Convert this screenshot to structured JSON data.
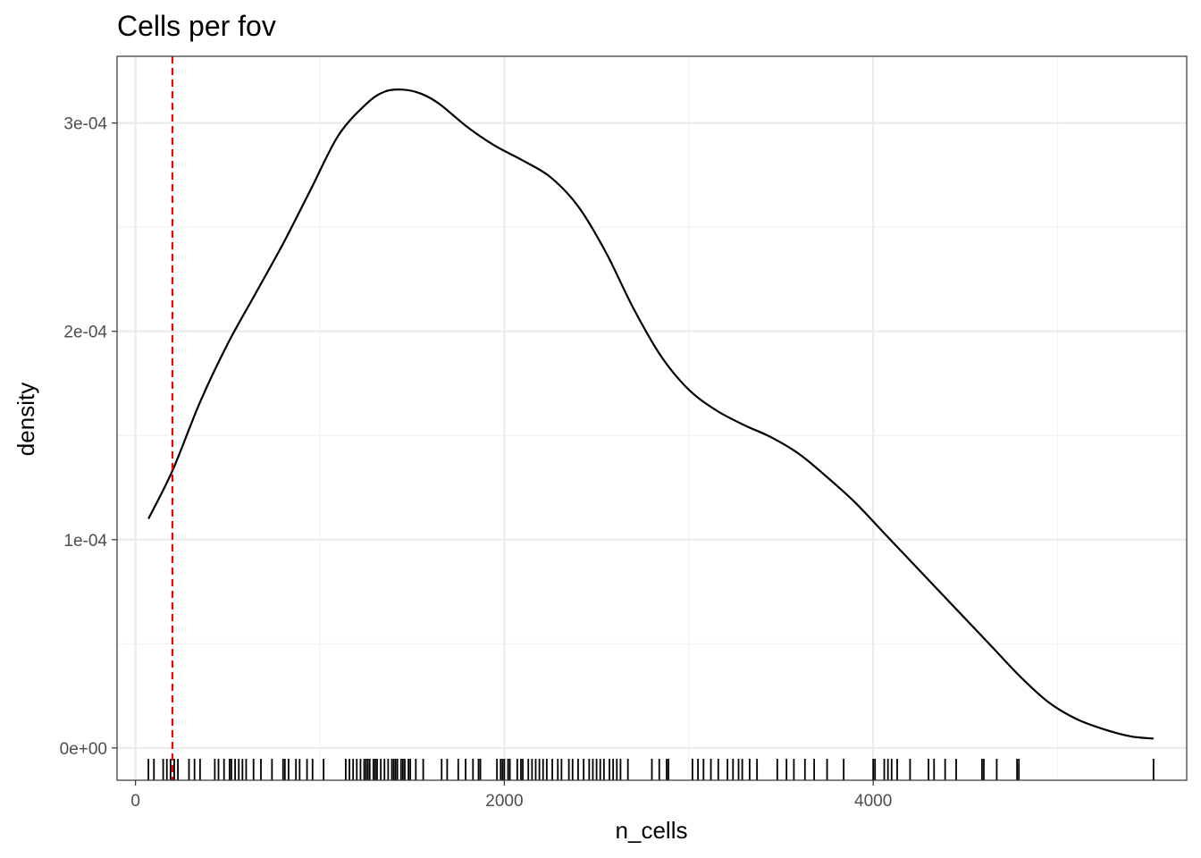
{
  "chart_data": {
    "type": "line",
    "title": "Cells per fov",
    "xlabel": "n_cells",
    "ylabel": "density",
    "xlim": [
      -100,
      5700
    ],
    "ylim": [
      -1.55e-05,
      0.000332
    ],
    "x_ticks": [
      0,
      2000,
      4000
    ],
    "x_tick_labels": [
      "0",
      "2000",
      "4000"
    ],
    "y_ticks": [
      0,
      0.0001,
      0.0002,
      0.0003
    ],
    "y_tick_labels": [
      "0e+00",
      "1e-04",
      "2e-04",
      "3e-04"
    ],
    "grid": true,
    "series": [
      {
        "kind": "density",
        "color": "#000000",
        "x": [
          70,
          200,
          350,
          500,
          650,
          800,
          950,
          1100,
          1250,
          1350,
          1450,
          1550,
          1650,
          1800,
          1950,
          2100,
          2250,
          2400,
          2550,
          2700,
          2850,
          3000,
          3150,
          3300,
          3450,
          3600,
          3750,
          3900,
          4050,
          4200,
          4350,
          4500,
          4650,
          4800,
          4950,
          5100,
          5250,
          5400,
          5520
        ],
        "y": [
          0.00011,
          0.000133,
          0.000166,
          0.000194,
          0.000218,
          0.000242,
          0.000268,
          0.000294,
          0.000309,
          0.000315,
          0.000316,
          0.000314,
          0.000309,
          0.000298,
          0.000289,
          0.000282,
          0.000274,
          0.00026,
          0.000238,
          0.000211,
          0.000188,
          0.000172,
          0.000162,
          0.000155,
          0.000149,
          0.000141,
          0.00013,
          0.000118,
          0.000104,
          9e-05,
          7.6e-05,
          6.2e-05,
          4.8e-05,
          3.4e-05,
          2.2e-05,
          1.4e-05,
          9e-06,
          5.5e-06,
          4.5e-06
        ]
      }
    ],
    "reference_line": {
      "x": 200,
      "color": "#ff0000",
      "style": "dashed"
    },
    "rug": [
      70,
      100,
      150,
      170,
      190,
      210,
      230,
      290,
      320,
      350,
      430,
      450,
      480,
      510,
      520,
      540,
      560,
      580,
      600,
      640,
      680,
      740,
      800,
      810,
      830,
      870,
      890,
      930,
      960,
      1020,
      1140,
      1160,
      1180,
      1200,
      1220,
      1240,
      1250,
      1260,
      1270,
      1290,
      1300,
      1310,
      1330,
      1350,
      1370,
      1390,
      1400,
      1410,
      1420,
      1440,
      1450,
      1460,
      1480,
      1490,
      1520,
      1560,
      1660,
      1690,
      1750,
      1790,
      1830,
      1860,
      1870,
      1960,
      1980,
      1990,
      2000,
      2020,
      2030,
      2070,
      2090,
      2100,
      2130,
      2150,
      2170,
      2190,
      2210,
      2230,
      2260,
      2290,
      2310,
      2350,
      2370,
      2400,
      2430,
      2460,
      2480,
      2500,
      2520,
      2540,
      2570,
      2590,
      2610,
      2630,
      2670,
      2800,
      2840,
      2880,
      2890,
      3020,
      3050,
      3080,
      3120,
      3160,
      3210,
      3240,
      3270,
      3290,
      3330,
      3370,
      3480,
      3530,
      3570,
      3630,
      3680,
      3750,
      3840,
      4000,
      4010,
      4060,
      4080,
      4100,
      4130,
      4200,
      4300,
      4330,
      4390,
      4450,
      4590,
      4600,
      4670,
      4780,
      4790,
      5520
    ]
  }
}
